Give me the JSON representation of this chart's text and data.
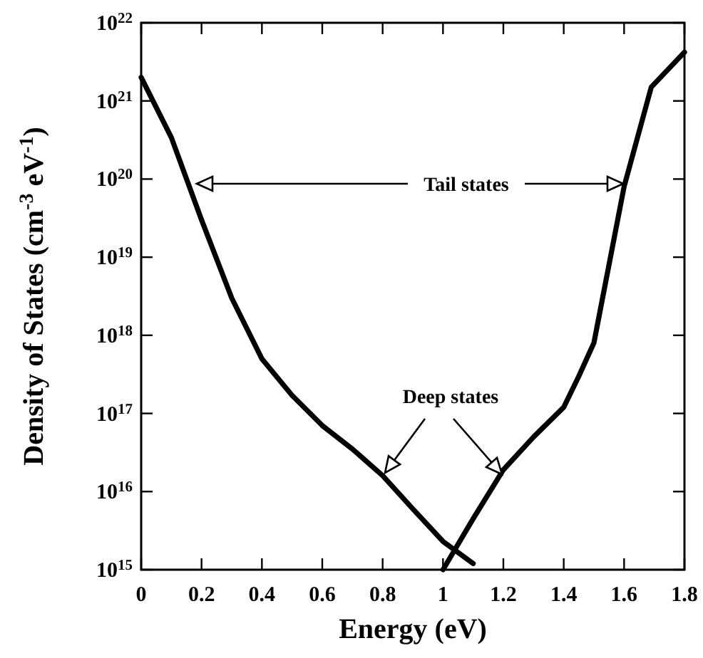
{
  "chart_data": {
    "type": "line",
    "xlabel": "Energy (eV)",
    "ylabel": "Density of States (cm$^{-3}$ eV$^{-1}$)",
    "log": "y",
    "line_style": "solid",
    "grid": false,
    "xlim": [
      0,
      1.8
    ],
    "xticks": [
      {
        "value": 0,
        "label": "0"
      },
      0.2,
      0.4,
      0.6,
      0.8,
      1,
      1.2,
      1.4,
      1.6,
      1.8
    ],
    "ylim": [
      1000000000000000.0,
      1e+22
    ],
    "yticks": [
      {
        "value": 1000000000000000.0,
        "label": "10$^{15}$"
      },
      {
        "value": 1e+16,
        "label": "10$^{16}$"
      },
      {
        "value": 1e+17,
        "label": "10$^{17}$"
      },
      {
        "value": 1e+18,
        "label": "10$^{18}$"
      },
      {
        "value": 1e+19,
        "label": "10$^{19}$"
      },
      {
        "value": 1e+20,
        "label": "10$^{20}$"
      },
      {
        "value": 1e+21,
        "label": "10$^{21}$"
      },
      {
        "value": 1e+22,
        "label": "10$^{22}$"
      }
    ],
    "series": [
      {
        "color": "#000000",
        "x": [
          0,
          0.1,
          0.2,
          0.3,
          0.4,
          0.5,
          0.6,
          0.7,
          0.8,
          0.9,
          1.0,
          1.1
        ],
        "values": [
          2e+21,
          3.4e+20,
          3e+19,
          3e+18,
          5e+17,
          1.7e+17,
          7e+16,
          3.5e+16,
          1.6e+16,
          6000000000000000.0,
          2300000000000000.0,
          1200000000000000.0
        ]
      },
      {
        "color": "#000000",
        "x": [
          1.0,
          1.1,
          1.2,
          1.3,
          1.4,
          1.45,
          1.5,
          1.6,
          1.69,
          1.8
        ],
        "values": [
          1000000000000000.0,
          4500000000000000.0,
          1.9e+16,
          5e+16,
          1.2e+17,
          3e+17,
          8e+17,
          8e+19,
          1.5e+21,
          4.2e+21
        ]
      }
    ],
    "annotations": [
      "Tail states",
      "Deep states"
    ]
  }
}
